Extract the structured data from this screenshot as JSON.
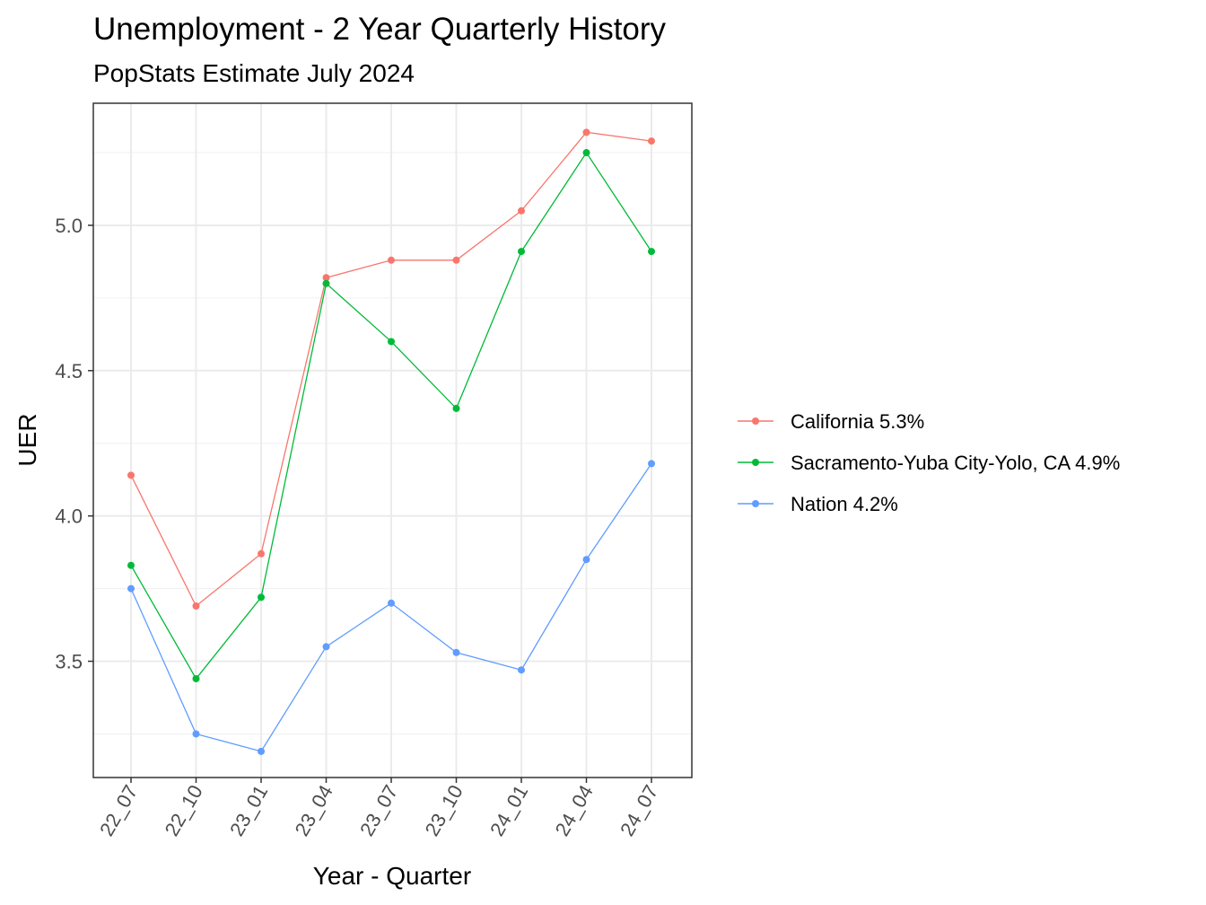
{
  "chart_data": {
    "type": "line",
    "title": "Unemployment - 2 Year Quarterly History",
    "subtitle": "PopStats Estimate July 2024",
    "xlabel": "Year - Quarter",
    "ylabel": "UER",
    "categories": [
      "22_07",
      "22_10",
      "23_01",
      "23_04",
      "23_07",
      "23_10",
      "24_01",
      "24_04",
      "24_07"
    ],
    "ylim": [
      3.1,
      5.42
    ],
    "yticks": [
      3.5,
      4.0,
      4.5,
      5.0
    ],
    "ytick_labels": [
      "3.5",
      "4.0",
      "4.5",
      "5.0"
    ],
    "grid": true,
    "legend_position": "right",
    "series": [
      {
        "name": "California 5.3%",
        "color": "#F8766D",
        "values": [
          4.14,
          3.69,
          3.87,
          4.82,
          4.88,
          4.88,
          5.05,
          5.32,
          5.29
        ]
      },
      {
        "name": "Sacramento-Yuba City-Yolo, CA 4.9%",
        "color": "#00BA38",
        "values": [
          3.83,
          3.44,
          3.72,
          4.8,
          4.6,
          4.37,
          4.91,
          5.25,
          4.91
        ]
      },
      {
        "name": "Nation 4.2%",
        "color": "#619CFF",
        "values": [
          3.75,
          3.25,
          3.19,
          3.55,
          3.7,
          3.53,
          3.47,
          3.85,
          4.18
        ]
      }
    ]
  }
}
